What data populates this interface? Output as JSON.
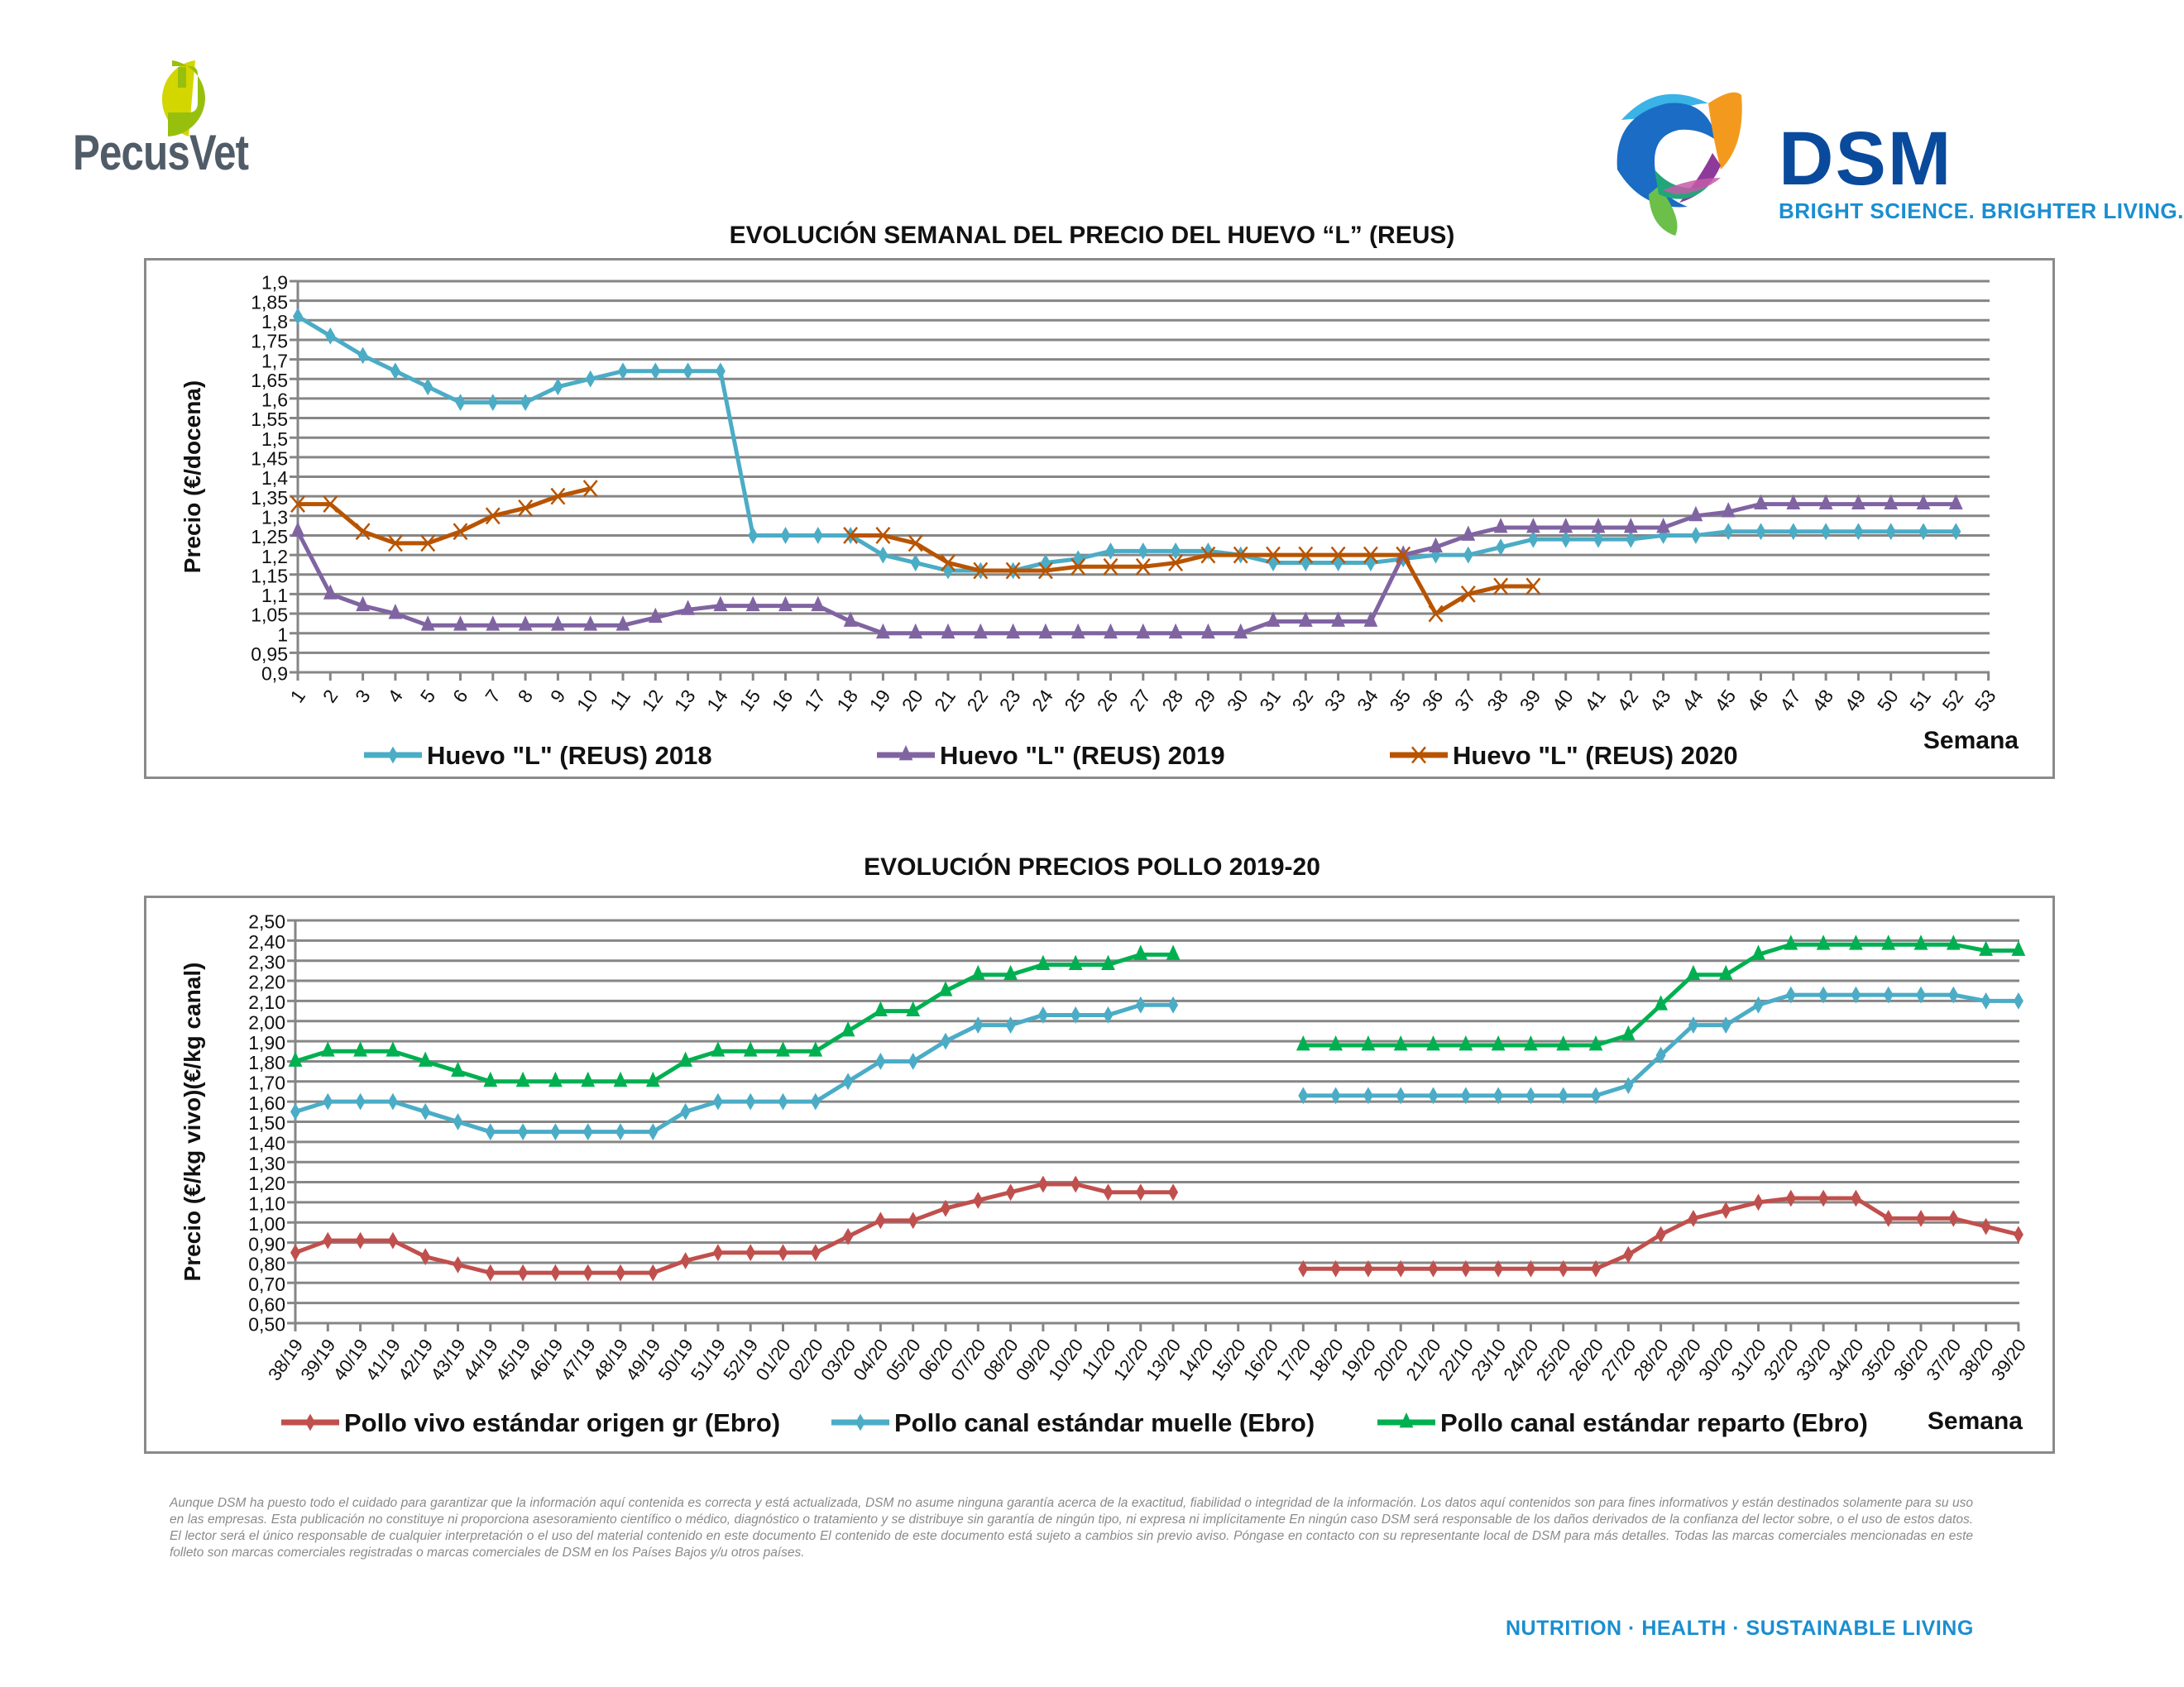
{
  "header": {
    "left_logo_text": "PecusVet",
    "right_logo_text": "DSM",
    "right_logo_tagline": "BRIGHT SCIENCE. BRIGHTER LIVING."
  },
  "colors": {
    "pecus_yellow": "#d4d600",
    "pecus_green": "#97c00e",
    "pecus_text": "#505c68",
    "dsm_blue": "#0a4a9c",
    "dsm_light_blue": "#1a8ed0",
    "series_2018": "#4bacc6",
    "series_2019": "#8064a2",
    "series_2020": "#b85400",
    "pollo_vivo": "#c0504d",
    "pollo_muelle": "#4bacc6",
    "pollo_reparto": "#00b050",
    "grid": "#868686"
  },
  "chart_data": [
    {
      "type": "line",
      "title": "EVOLUCIÓN SEMANAL DEL PRECIO DEL HUEVO “L” (REUS)",
      "xlabel": "Semana",
      "ylabel": "Precio (€/docena)",
      "ylim": [
        0.9,
        1.9
      ],
      "ytick_step": 0.05,
      "yticks": [
        "0,9",
        "0,95",
        "1",
        "1,05",
        "1,1",
        "1,15",
        "1,2",
        "1,25",
        "1,3",
        "1,35",
        "1,4",
        "1,45",
        "1,5",
        "1,55",
        "1,6",
        "1,65",
        "1,7",
        "1,75",
        "1,8",
        "1,85",
        "1,9"
      ],
      "grid": true,
      "legend_position": "bottom",
      "categories": [
        "1",
        "2",
        "3",
        "4",
        "5",
        "6",
        "7",
        "8",
        "9",
        "10",
        "11",
        "12",
        "13",
        "14",
        "15",
        "16",
        "17",
        "18",
        "19",
        "20",
        "21",
        "22",
        "23",
        "24",
        "25",
        "26",
        "27",
        "28",
        "29",
        "30",
        "31",
        "32",
        "33",
        "34",
        "35",
        "36",
        "37",
        "38",
        "39",
        "40",
        "41",
        "42",
        "43",
        "44",
        "45",
        "46",
        "47",
        "48",
        "49",
        "50",
        "51",
        "52",
        "53"
      ],
      "series": [
        {
          "name": "Huevo \"L\" (REUS) 2018",
          "marker": "diamond",
          "color": "#4bacc6",
          "values": [
            1.81,
            1.76,
            1.71,
            1.67,
            1.63,
            1.59,
            1.59,
            1.59,
            1.63,
            1.65,
            1.67,
            1.67,
            1.67,
            1.67,
            1.25,
            1.25,
            1.25,
            1.25,
            1.2,
            1.18,
            1.16,
            1.16,
            1.16,
            1.18,
            1.19,
            1.21,
            1.21,
            1.21,
            1.21,
            1.2,
            1.18,
            1.18,
            1.18,
            1.18,
            1.19,
            1.2,
            1.2,
            1.22,
            1.24,
            1.24,
            1.24,
            1.24,
            1.25,
            1.25,
            1.26,
            1.26,
            1.26,
            1.26,
            1.26,
            1.26,
            1.26,
            1.26,
            null
          ]
        },
        {
          "name": "Huevo \"L\" (REUS) 2019",
          "marker": "triangle",
          "color": "#8064a2",
          "values": [
            1.26,
            1.1,
            1.07,
            1.05,
            1.02,
            1.02,
            1.02,
            1.02,
            1.02,
            1.02,
            1.02,
            1.04,
            1.06,
            1.07,
            1.07,
            1.07,
            1.07,
            1.03,
            1.0,
            1.0,
            1.0,
            1.0,
            1.0,
            1.0,
            1.0,
            1.0,
            1.0,
            1.0,
            1.0,
            1.0,
            1.03,
            1.03,
            1.03,
            1.03,
            1.2,
            1.22,
            1.25,
            1.27,
            1.27,
            1.27,
            1.27,
            1.27,
            1.27,
            1.3,
            1.31,
            1.33,
            1.33,
            1.33,
            1.33,
            1.33,
            1.33,
            1.33,
            null
          ]
        },
        {
          "name": "Huevo \"L\" (REUS) 2020",
          "marker": "x",
          "color": "#b85400",
          "values": [
            1.33,
            1.33,
            1.26,
            1.23,
            1.23,
            1.26,
            1.3,
            1.32,
            1.35,
            1.37,
            null,
            null,
            null,
            null,
            null,
            null,
            null,
            1.25,
            1.25,
            1.23,
            1.18,
            1.16,
            1.16,
            1.16,
            1.17,
            1.17,
            1.17,
            1.18,
            1.2,
            1.2,
            1.2,
            1.2,
            1.2,
            1.2,
            1.2,
            1.05,
            1.1,
            1.12,
            1.12,
            null,
            null,
            null,
            null,
            null,
            null,
            null,
            null,
            null,
            null,
            null,
            null,
            null,
            null
          ]
        }
      ]
    },
    {
      "type": "line",
      "title": "EVOLUCIÓN PRECIOS POLLO 2019-20",
      "xlabel": "Semana",
      "ylabel": "Precio (€/kg vivo)(€/kg canal)",
      "ylim": [
        0.5,
        2.5
      ],
      "ytick_step": 0.1,
      "yticks": [
        "0,50",
        "0,60",
        "0,70",
        "0,80",
        "0,90",
        "1,00",
        "1,10",
        "1,20",
        "1,30",
        "1,40",
        "1,50",
        "1,60",
        "1,70",
        "1,80",
        "1,90",
        "2,00",
        "2,10",
        "2,20",
        "2,30",
        "2,40",
        "2,50"
      ],
      "grid": true,
      "legend_position": "bottom",
      "categories": [
        "38/19",
        "39/19",
        "40/19",
        "41/19",
        "42/19",
        "43/19",
        "44/19",
        "45/19",
        "46/19",
        "47/19",
        "48/19",
        "49/19",
        "50/19",
        "51/19",
        "52/19",
        "01/20",
        "02/20",
        "03/20",
        "04/20",
        "05/20",
        "06/20",
        "07/20",
        "08/20",
        "09/20",
        "10/20",
        "11/20",
        "12/20",
        "13/20",
        "14/20",
        "15/20",
        "16/20",
        "17/20",
        "18/20",
        "19/20",
        "20/20",
        "21/20",
        "22/10",
        "23/10",
        "24/20",
        "25/20",
        "26/20",
        "27/20",
        "28/20",
        "29/20",
        "30/20",
        "31/20",
        "32/20",
        "33/20",
        "34/20",
        "35/20",
        "36/20",
        "37/20",
        "38/20",
        "39/20"
      ],
      "series": [
        {
          "name": "Pollo vivo estándar origen gr (Ebro)",
          "marker": "diamond",
          "color": "#c0504d",
          "values": [
            0.85,
            0.91,
            0.91,
            0.91,
            0.83,
            0.79,
            0.75,
            0.75,
            0.75,
            0.75,
            0.75,
            0.75,
            0.81,
            0.85,
            0.85,
            0.85,
            0.85,
            0.93,
            1.01,
            1.01,
            1.07,
            1.11,
            1.15,
            1.19,
            1.19,
            1.15,
            1.15,
            1.15,
            null,
            null,
            null,
            0.77,
            0.77,
            0.77,
            0.77,
            0.77,
            0.77,
            0.77,
            0.77,
            0.77,
            0.77,
            0.84,
            0.94,
            1.02,
            1.06,
            1.1,
            1.12,
            1.12,
            1.12,
            1.02,
            1.02,
            1.02,
            0.98,
            0.94
          ]
        },
        {
          "name": "Pollo canal estándar muelle (Ebro)",
          "marker": "diamond",
          "color": "#4bacc6",
          "values": [
            1.55,
            1.6,
            1.6,
            1.6,
            1.55,
            1.5,
            1.45,
            1.45,
            1.45,
            1.45,
            1.45,
            1.45,
            1.55,
            1.6,
            1.6,
            1.6,
            1.6,
            1.7,
            1.8,
            1.8,
            1.9,
            1.98,
            1.98,
            2.03,
            2.03,
            2.03,
            2.08,
            2.08,
            null,
            null,
            null,
            1.63,
            1.63,
            1.63,
            1.63,
            1.63,
            1.63,
            1.63,
            1.63,
            1.63,
            1.63,
            1.68,
            1.83,
            1.98,
            1.98,
            2.08,
            2.13,
            2.13,
            2.13,
            2.13,
            2.13,
            2.13,
            2.1,
            2.1
          ]
        },
        {
          "name": "Pollo canal estándar reparto (Ebro)",
          "marker": "triangle",
          "color": "#00b050",
          "values": [
            1.8,
            1.85,
            1.85,
            1.85,
            1.8,
            1.75,
            1.7,
            1.7,
            1.7,
            1.7,
            1.7,
            1.7,
            1.8,
            1.85,
            1.85,
            1.85,
            1.85,
            1.95,
            2.05,
            2.05,
            2.15,
            2.23,
            2.23,
            2.28,
            2.28,
            2.28,
            2.33,
            2.33,
            null,
            null,
            null,
            1.88,
            1.88,
            1.88,
            1.88,
            1.88,
            1.88,
            1.88,
            1.88,
            1.88,
            1.88,
            1.93,
            2.08,
            2.23,
            2.23,
            2.33,
            2.38,
            2.38,
            2.38,
            2.38,
            2.38,
            2.38,
            2.35,
            2.35
          ]
        }
      ]
    }
  ],
  "footer": {
    "disclaimer": "Aunque DSM ha puesto todo el cuidado para garantizar que la información aquí contenida es correcta y está actualizada, DSM no asume ninguna garantía acerca de la exactitud, fiabilidad o integridad de la información. Los datos aquí contenidos son para fines informativos y están destinados solamente para su uso en las empresas. Esta publicación no constituye ni proporciona asesoramiento científico o médico, diagnóstico o tratamiento y se distribuye sin garantía de ningún tipo, ni expresa ni implícitamente En ningún caso DSM será responsable de los daños derivados de la confianza del lector sobre, o el uso de estos datos. El lector será el único responsable de cualquier interpretación o el uso del material contenido en este documento El contenido de este documento está sujeto a cambios sin previo aviso. Póngase en contacto con su representante local de DSM para más detalles. Todas las marcas comerciales mencionadas en este folleto son marcas comerciales registradas o marcas comerciales de DSM en los Países Bajos y/u otros países.",
    "slogan": "NUTRITION · HEALTH · SUSTAINABLE LIVING"
  }
}
